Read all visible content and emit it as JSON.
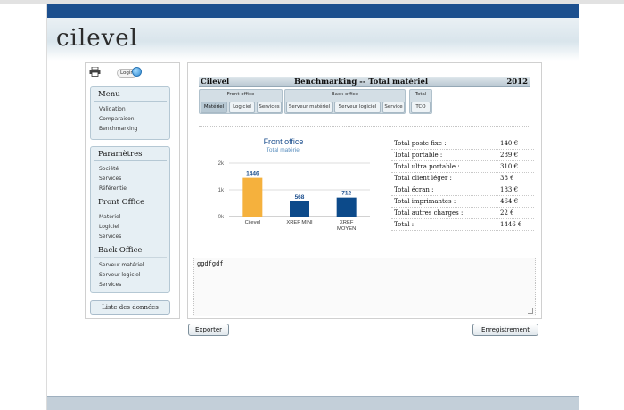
{
  "app": {
    "logo_text": "cilevel"
  },
  "sidebar": {
    "login_label": "Login",
    "menu": {
      "title": "Menu",
      "items": [
        "Validation",
        "Comparaison",
        "Benchmarking"
      ]
    },
    "parametres": {
      "title": "Paramètres",
      "items": [
        "Société",
        "Services",
        "Référentiel"
      ]
    },
    "front_office": {
      "title": "Front Office",
      "items": [
        "Matériel",
        "Logiciel",
        "Services"
      ]
    },
    "back_office": {
      "title": "Back Office",
      "items": [
        "Serveur matériel",
        "Serveur logiciel",
        "Services"
      ]
    },
    "list_button": "Liste des données"
  },
  "main": {
    "company": "Cilevel",
    "heading": "Benchmarking -- Total matériel",
    "year": "2012",
    "tabs": {
      "front_office": {
        "label": "Front office",
        "items": [
          "Matériel",
          "Logiciel",
          "Services"
        ],
        "active": "Matériel"
      },
      "back_office": {
        "label": "Back office",
        "items": [
          "Serveur matériel",
          "Serveur logiciel",
          "Service"
        ]
      },
      "total": {
        "label": "Total",
        "items": [
          "TCO"
        ]
      }
    },
    "summary": [
      {
        "label": "Total poste fixe :",
        "value": "140 €"
      },
      {
        "label": "Total portable :",
        "value": "289 €"
      },
      {
        "label": "Total ultra portable :",
        "value": "310 €"
      },
      {
        "label": "Total client léger :",
        "value": "38 €"
      },
      {
        "label": "Total écran :",
        "value": "183 €"
      },
      {
        "label": "Total imprimantes :",
        "value": "464 €"
      },
      {
        "label": "Total autres charges :",
        "value": "22 €"
      },
      {
        "label": "Total :",
        "value": "1446 €"
      }
    ],
    "note_text": "ggdfgdf",
    "buttons": {
      "export": "Exporter",
      "save": "Enregistrement"
    }
  },
  "chart_data": {
    "type": "bar",
    "title": "Front office",
    "subtitle": "Total matériel",
    "categories": [
      "Cilevel",
      "XREF MINI",
      "XREF MOYEN"
    ],
    "values": [
      1446,
      568,
      712
    ],
    "data_labels": [
      "1446",
      "568",
      "712"
    ],
    "ylim": [
      0,
      2000
    ],
    "y_ticks": [
      0,
      1000,
      2000
    ],
    "y_tick_labels": [
      "0k",
      "1k",
      "2k"
    ],
    "bar_colors": [
      "#f5b13d",
      "#0c4a8a",
      "#0c4a8a"
    ],
    "grid": true,
    "legend": "none"
  },
  "colors": {
    "brand_bar": "#1c4f8e",
    "panel_bg": "#e6eff4",
    "accent_orange": "#f5b13d",
    "accent_blue": "#0c4a8a"
  },
  "icons": {
    "print": "printer-icon",
    "login": "login-globe-icon"
  }
}
